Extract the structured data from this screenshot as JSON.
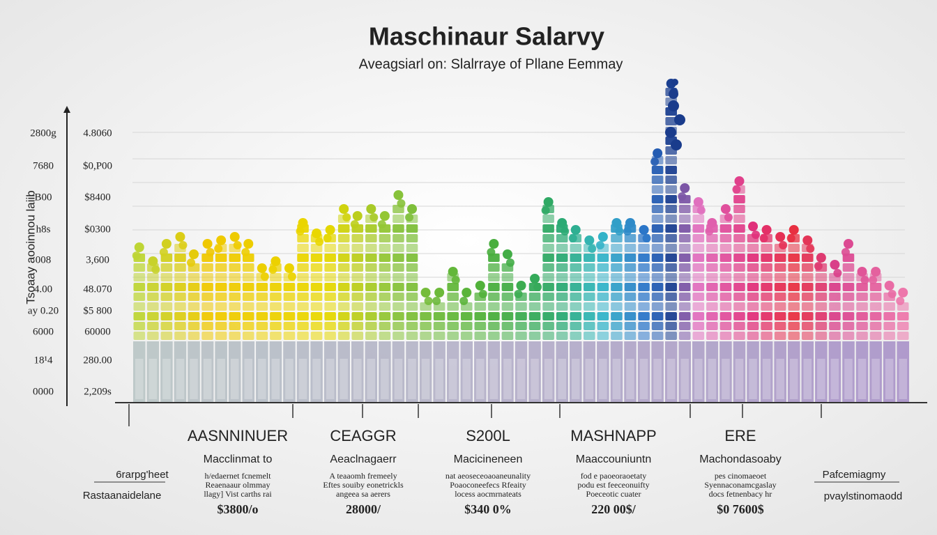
{
  "header": {
    "title": "Maschinaur Salarvy",
    "subtitle": "Aveagsiarl on: Slalrraye of Pllane Eemmay"
  },
  "axis": {
    "label": "Tsoaay aooinnou laiib",
    "left_labels": [
      "2800g",
      "7680",
      "B00",
      "h8s",
      "008",
      "4.00",
      "ay 0.20",
      "6000",
      "18¹4",
      "0000"
    ],
    "right_labels": [
      "4.8060",
      "$0,P00",
      "$8400",
      "$0300",
      "3,600",
      "48.070",
      "$5 800",
      "60000",
      "280.00",
      "2,209s"
    ]
  },
  "groups": [
    {
      "heading": "AASNNINUER",
      "subheading": "Macclinmat to",
      "lines": [
        "h/edaernet fcnemelt",
        "Reaenaaur olmmay",
        "llagy] Vist carths rai"
      ],
      "value": "$3800/o"
    },
    {
      "heading": "CEAGGR",
      "subheading": "Aeaclnagaerr",
      "lines": [
        "A teaaomh fremeely",
        "Eftes souiby eonetrickls",
        "angeea sa aerers"
      ],
      "value": "28000/"
    },
    {
      "heading": "S200L",
      "subheading": "Macicineneen",
      "lines": [
        "nat aeoseceoaoaneunality",
        "Poaoconeefecs Rfeaity",
        "locess aocmrnateats"
      ],
      "value": "$340 0%"
    },
    {
      "heading": "MASHNAPP",
      "subheading": "Maaccouniuntn",
      "lines": [
        "fod e paoeoraoetaty",
        "podu est feeceonuifty",
        "Poeceotic cuater"
      ],
      "value": "220 00$/"
    },
    {
      "heading": "ERE",
      "subheading": "Machondasoaby",
      "lines": [
        "pes cinomaeoet",
        "Syennaconamcgaslay",
        "docs fetnenbacy hr"
      ],
      "value": "$0 7600$"
    }
  ],
  "side_left": {
    "top": "6rarpg'heet",
    "bottom": "Rastaanaidelane"
  },
  "side_right": {
    "top": "Pafcemiagmy",
    "bottom": "pvaylstinomaodd"
  }
}
